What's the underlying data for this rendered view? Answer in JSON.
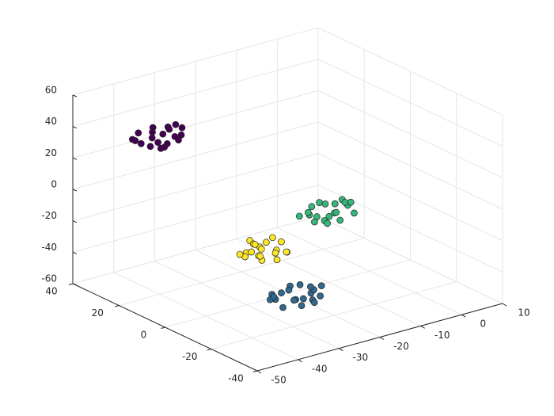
{
  "chart_data": {
    "type": "scatter3d",
    "xlim": [
      -50,
      10
    ],
    "ylim": [
      -40,
      40
    ],
    "zlim": [
      -60,
      60
    ],
    "xticks": [
      -50,
      -40,
      -30,
      -20,
      -10,
      0,
      10
    ],
    "yticks": [
      -40,
      -20,
      0,
      20,
      40
    ],
    "zticks": [
      -60,
      -40,
      -20,
      0,
      20,
      40,
      60
    ],
    "grid": true,
    "series": [
      {
        "color": "#440154",
        "x": [
          -38,
          -44,
          -35,
          -41,
          -37,
          -46,
          -40,
          -36,
          -43,
          -39,
          -42,
          -34,
          -45,
          -38,
          -40,
          -43,
          -36,
          -41,
          -37,
          -44
        ],
        "y": [
          17,
          21,
          22,
          15,
          24,
          20,
          23,
          19,
          18,
          25,
          16,
          21,
          23,
          20,
          18,
          24,
          23,
          19,
          16,
          17
        ],
        "z": [
          41,
          38,
          43,
          40,
          37,
          42,
          44,
          36,
          43,
          39,
          37,
          41,
          40,
          45,
          35,
          42,
          40,
          38,
          42,
          39
        ]
      },
      {
        "color": "#35b779",
        "x": [
          -8,
          -14,
          -5,
          -11,
          -7,
          -16,
          -10,
          -6,
          -13,
          -9,
          -12,
          -4,
          -15,
          -8,
          -10,
          -13,
          -6,
          -11,
          -7,
          -14
        ],
        "y": [
          1,
          -2,
          3,
          0,
          -3,
          2,
          4,
          -4,
          3,
          -1,
          -3,
          1,
          0,
          5,
          -5,
          2,
          0,
          -2,
          2,
          -1
        ],
        "z": [
          -18,
          -14,
          -13,
          -20,
          -11,
          -15,
          -12,
          -16,
          -17,
          -10,
          -19,
          -14,
          -12,
          -15,
          -17,
          -11,
          -12,
          -16,
          -19,
          -18
        ]
      },
      {
        "color": "#fde725",
        "x": [
          -29,
          -25,
          -24,
          -31,
          -22,
          -26,
          -23,
          -27,
          -28,
          -21,
          -30,
          -25,
          -23,
          -26,
          -28,
          -22,
          -23,
          -27,
          -30,
          -29
        ],
        "y": [
          2,
          -4,
          5,
          -1,
          3,
          -6,
          0,
          4,
          -3,
          1,
          -2,
          6,
          -5,
          2,
          0,
          -3,
          4,
          -1,
          3,
          -4
        ],
        "z": [
          -29,
          -26,
          -31,
          -28,
          -25,
          -30,
          -32,
          -24,
          -31,
          -27,
          -25,
          -29,
          -28,
          -33,
          -23,
          -30,
          -28,
          -26,
          -30,
          -27
        ]
      },
      {
        "color": "#31688e",
        "x": [
          -31,
          -25,
          -34,
          -28,
          -32,
          -23,
          -29,
          -33,
          -26,
          -30,
          -27,
          -35,
          -24,
          -31,
          -29,
          -26,
          -33,
          -28,
          -32,
          -25
        ],
        "y": [
          -23,
          -19,
          -18,
          -25,
          -16,
          -20,
          -17,
          -21,
          -22,
          -15,
          -24,
          -19,
          -17,
          -20,
          -22,
          -16,
          -17,
          -21,
          -24,
          -23
        ],
        "z": [
          -40,
          -43,
          -38,
          -41,
          -44,
          -39,
          -37,
          -45,
          -38,
          -42,
          -44,
          -40,
          -41,
          -36,
          -46,
          -39,
          -41,
          -43,
          -39,
          -42
        ]
      }
    ]
  }
}
